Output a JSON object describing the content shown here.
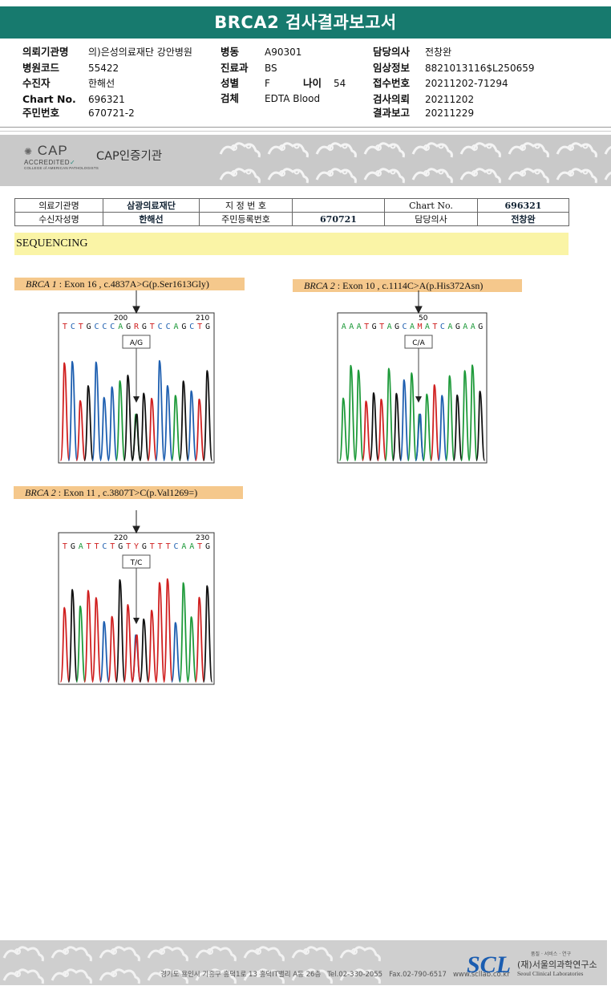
{
  "report": {
    "title": "BRCA2 검사결과보고서",
    "header": {
      "col1": [
        {
          "label": "의뢰기관명",
          "value": "의)은성의료재단 강안병원"
        },
        {
          "label": "병원코드",
          "value": "55422"
        },
        {
          "label": "수진자",
          "value": "한해선"
        },
        {
          "label": "Chart No.",
          "value": "696321"
        },
        {
          "label": "주민번호",
          "value": "670721-2"
        }
      ],
      "col2": [
        {
          "label": "병동",
          "value": "A90301"
        },
        {
          "label": "진료과",
          "value": "BS"
        },
        {
          "label": "성별",
          "value": "F"
        },
        {
          "label": "검체",
          "value": "EDTA Blood"
        }
      ],
      "age_label": "나이",
      "age_value": "54",
      "col3": [
        {
          "label": "담당의사",
          "value": "전창완"
        },
        {
          "label": "임상정보",
          "value": "8821013116$L250659"
        },
        {
          "label": "접수번호",
          "value": "20211202-71294"
        },
        {
          "label": "검사의뢰",
          "value": "20211202"
        },
        {
          "label": "결과보고",
          "value": "20211229"
        }
      ]
    },
    "cap": {
      "logo_main": "CAP",
      "logo_sub": "ACCREDITED",
      "logo_tiny": "COLLEGE of AMERICAN PATHOLOGISTS",
      "cert_text": "CAP인증기관"
    },
    "inner_table": {
      "r1": [
        "의료기관명",
        "삼광의료재단",
        "지 정 번 호",
        "",
        "Chart No.",
        "696321"
      ],
      "r2": [
        "수신자성명",
        "한해선",
        "주민등록번호",
        "670721",
        "담당의사",
        "전창완"
      ]
    },
    "section_title": "SEQUENCING",
    "variants": [
      {
        "gene": "BRCA 1",
        "text": " : Exon 16 , c.4837A>G(p.Ser1613Gly)",
        "zygosity": "A/G",
        "pos_start": "200",
        "pos_end": "210",
        "sequence": "T C T G C C C A G R G T C C A G C T G"
      },
      {
        "gene": "BRCA 2",
        "text": " : Exon 10 , c.1114C>A(p.His372Asn)",
        "zygosity": "C/A",
        "pos_start": "50",
        "pos_end": "",
        "sequence": "A A A T G T A G C A M A T C A G A A G"
      },
      {
        "gene": "BRCA 2",
        "text": " : Exon 11 , c.3807T>C(p.Val1269=)",
        "zygosity": "T/C",
        "pos_start": "220",
        "pos_end": "230",
        "sequence": "T G A T T C T G T Y G T T T C A A T G"
      }
    ],
    "footer": {
      "address": "경기도 용인시 기흥구 흥덕1로 13 흥덕IT밸리 A동 26층",
      "tel": "Tel.02-330-2055",
      "fax": "Fax.02-790-6517",
      "web": "www.scllab.co.kr",
      "logo": "SCL",
      "tagline": "품질 · 서비스 · 연구",
      "org_ko": "(재)서울의과학연구소",
      "org_en": "Seoul Clinical Laboratories"
    }
  }
}
